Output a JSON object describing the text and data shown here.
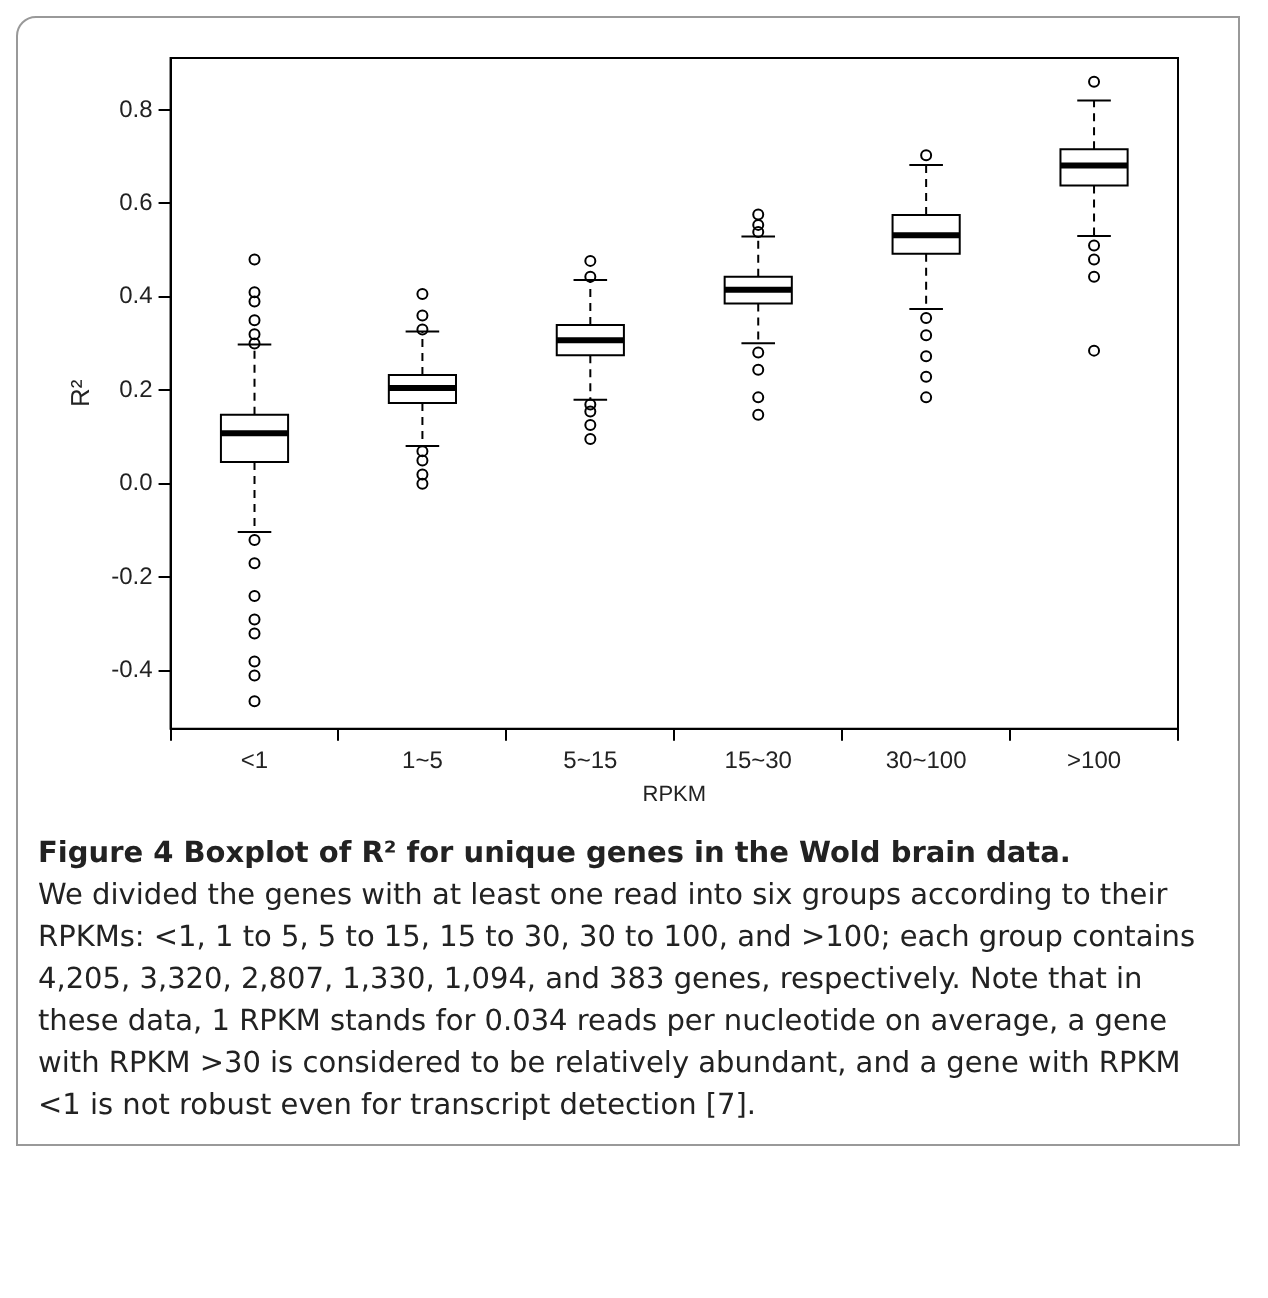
{
  "chart_data": {
    "type": "box",
    "title": "Figure 4 Boxplot of R² for unique genes in the Wold brain data.",
    "xlabel": "RPKM",
    "ylabel": "R²",
    "categories": [
      "<1",
      "1~5",
      "5~15",
      "15~30",
      "30~100",
      ">100"
    ],
    "boxes": [
      {
        "low": -0.103,
        "q1": 0.047,
        "median": 0.108,
        "q3": 0.148,
        "high": 0.298,
        "outliers": [
          0.48,
          0.41,
          0.39,
          0.35,
          0.32,
          0.3,
          -0.12,
          -0.17,
          -0.24,
          -0.29,
          -0.32,
          -0.38,
          -0.41,
          -0.465
        ]
      },
      {
        "low": 0.081,
        "q1": 0.173,
        "median": 0.205,
        "q3": 0.233,
        "high": 0.326,
        "outliers": [
          0.406,
          0.36,
          0.33,
          0.07,
          0.05,
          0.02,
          0.0
        ]
      },
      {
        "low": 0.18,
        "q1": 0.275,
        "median": 0.307,
        "q3": 0.34,
        "high": 0.436,
        "outliers": [
          0.477,
          0.443,
          0.17,
          0.155,
          0.126,
          0.096
        ]
      },
      {
        "low": 0.301,
        "q1": 0.386,
        "median": 0.415,
        "q3": 0.443,
        "high": 0.529,
        "outliers": [
          0.576,
          0.554,
          0.539,
          0.281,
          0.244,
          0.185,
          0.148
        ]
      },
      {
        "low": 0.374,
        "q1": 0.492,
        "median": 0.532,
        "q3": 0.575,
        "high": 0.682,
        "outliers": [
          0.703,
          0.355,
          0.318,
          0.273,
          0.229,
          0.185
        ]
      },
      {
        "low": 0.53,
        "q1": 0.638,
        "median": 0.681,
        "q3": 0.716,
        "high": 0.82,
        "outliers": [
          0.86,
          0.51,
          0.48,
          0.443,
          0.285
        ]
      }
    ],
    "color": "#000000",
    "ylim": [
      -0.524,
      0.911
    ],
    "yticks": [
      -0.4,
      -0.2,
      {
        "value": 0,
        "label": "0.0"
      },
      0.2,
      0.4,
      0.6,
      0.8
    ],
    "grid": false,
    "legend": false,
    "marker": "circle",
    "annotations": [
      "We divided the genes with at least one read into six groups according to their RPKMs: <1, 1 to 5, 5 to 15, 15 to 30, 30 to 100, and >100; each group contains 4,205, 3,320, 2,807, 1,330, 1,094, and 383 genes, respectively. Note that in these data, 1 RPKM stands for 0.034 reads per nucleotide on average, a gene with RPKM >30 is considered to be relatively abundant, and a gene with RPKM <1 is not robust even for transcript detection [7]."
    ]
  }
}
